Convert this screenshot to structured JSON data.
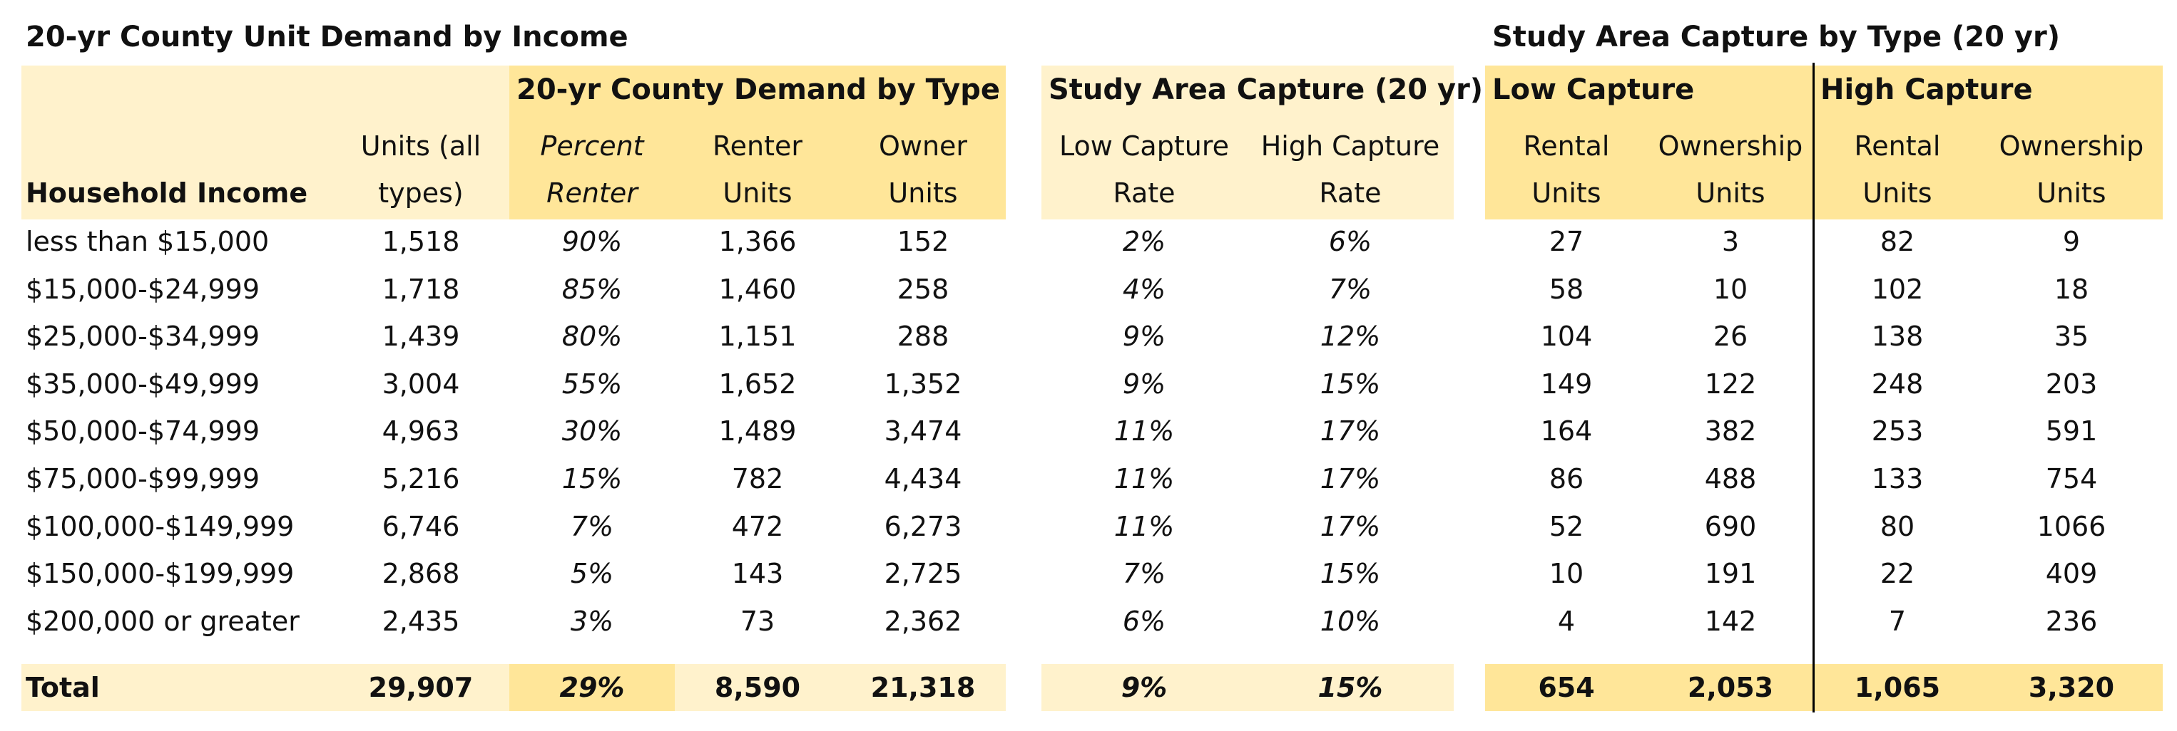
{
  "titles": {
    "left": "20-yr County Unit Demand by Income",
    "right": "Study Area Capture by Type (20 yr)"
  },
  "groups": {
    "demand_by_type": "20-yr County Demand by Type",
    "study_capture": "Study Area Capture (20 yr)",
    "low_capture": "Low Capture",
    "high_capture": "High Capture"
  },
  "headers": {
    "income": "Household Income",
    "units_all_1": "Units (all",
    "units_all_2": "types)",
    "pct_renter_1": "Percent",
    "pct_renter_2": "Renter",
    "renter_units_1": "Renter",
    "renter_units_2": "Units",
    "owner_units_1": "Owner",
    "owner_units_2": "Units",
    "low_rate_1": "Low Capture",
    "low_rate_2": "Rate",
    "high_rate_1": "High Capture",
    "high_rate_2": "Rate",
    "low_rental_1": "Rental",
    "low_rental_2": "Units",
    "low_own_1": "Ownership",
    "low_own_2": "Units",
    "high_rental_1": "Rental",
    "high_rental_2": "Units",
    "high_own_1": "Ownership",
    "high_own_2": "Units"
  },
  "rows": [
    {
      "income": "less than $15,000",
      "units": "1,518",
      "pct": "90%",
      "renter": "1,366",
      "owner": "152",
      "low_rate": "2%",
      "high_rate": "6%",
      "low_rental": "27",
      "low_own": "3",
      "high_rental": "82",
      "high_own": "9"
    },
    {
      "income": "$15,000-$24,999",
      "units": "1,718",
      "pct": "85%",
      "renter": "1,460",
      "owner": "258",
      "low_rate": "4%",
      "high_rate": "7%",
      "low_rental": "58",
      "low_own": "10",
      "high_rental": "102",
      "high_own": "18"
    },
    {
      "income": "$25,000-$34,999",
      "units": "1,439",
      "pct": "80%",
      "renter": "1,151",
      "owner": "288",
      "low_rate": "9%",
      "high_rate": "12%",
      "low_rental": "104",
      "low_own": "26",
      "high_rental": "138",
      "high_own": "35"
    },
    {
      "income": "$35,000-$49,999",
      "units": "3,004",
      "pct": "55%",
      "renter": "1,652",
      "owner": "1,352",
      "low_rate": "9%",
      "high_rate": "15%",
      "low_rental": "149",
      "low_own": "122",
      "high_rental": "248",
      "high_own": "203"
    },
    {
      "income": "$50,000-$74,999",
      "units": "4,963",
      "pct": "30%",
      "renter": "1,489",
      "owner": "3,474",
      "low_rate": "11%",
      "high_rate": "17%",
      "low_rental": "164",
      "low_own": "382",
      "high_rental": "253",
      "high_own": "591"
    },
    {
      "income": "$75,000-$99,999",
      "units": "5,216",
      "pct": "15%",
      "renter": "782",
      "owner": "4,434",
      "low_rate": "11%",
      "high_rate": "17%",
      "low_rental": "86",
      "low_own": "488",
      "high_rental": "133",
      "high_own": "754"
    },
    {
      "income": "$100,000-$149,999",
      "units": "6,746",
      "pct": "7%",
      "renter": "472",
      "owner": "6,273",
      "low_rate": "11%",
      "high_rate": "17%",
      "low_rental": "52",
      "low_own": "690",
      "high_rental": "80",
      "high_own": "1066"
    },
    {
      "income": "$150,000-$199,999",
      "units": "2,868",
      "pct": "5%",
      "renter": "143",
      "owner": "2,725",
      "low_rate": "7%",
      "high_rate": "15%",
      "low_rental": "10",
      "low_own": "191",
      "high_rental": "22",
      "high_own": "409"
    },
    {
      "income": "$200,000 or greater",
      "units": "2,435",
      "pct": "3%",
      "renter": "73",
      "owner": "2,362",
      "low_rate": "6%",
      "high_rate": "10%",
      "low_rental": "4",
      "low_own": "142",
      "high_rental": "7",
      "high_own": "236"
    }
  ],
  "total": {
    "income": "Total",
    "units": "29,907",
    "pct": "29%",
    "renter": "8,590",
    "owner": "21,318",
    "low_rate": "9%",
    "high_rate": "15%",
    "low_rental": "654",
    "low_own": "2,053",
    "high_rental": "1,065",
    "high_own": "3,320"
  },
  "colors": {
    "light": "#fff2cc",
    "mid": "#ffe699"
  }
}
